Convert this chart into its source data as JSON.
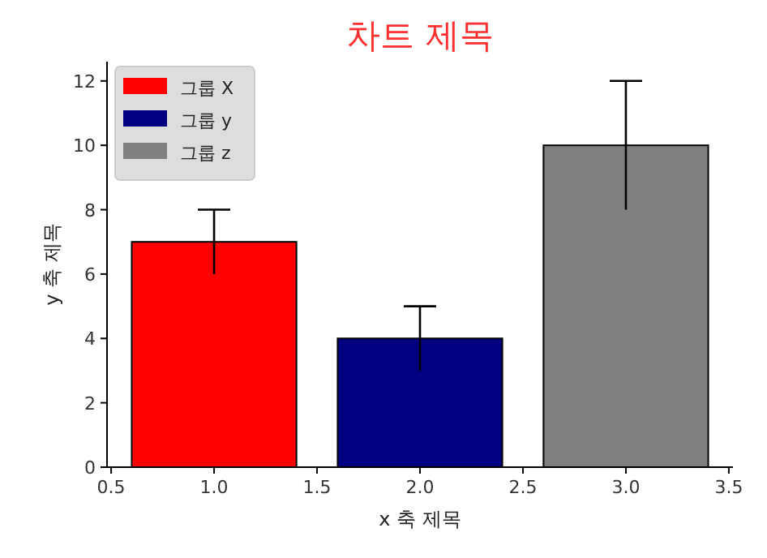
{
  "chart_data": {
    "type": "bar",
    "title": "차트 제목",
    "xlabel": "x 축 제목",
    "ylabel": "y 축 제목",
    "xlim": [
      0.48,
      3.52
    ],
    "xticks": [
      {
        "value": 0.5,
        "label": "0.5"
      },
      {
        "value": 1,
        "label": "1.0"
      },
      {
        "value": 1.5,
        "label": "1.5"
      },
      {
        "value": 2,
        "label": "2.0"
      },
      {
        "value": 2.5,
        "label": "2.5"
      },
      {
        "value": 3,
        "label": "3.0"
      },
      {
        "value": 3.5,
        "label": "3.5"
      }
    ],
    "ylim": [
      0,
      12.6
    ],
    "yticks": [
      0,
      2,
      4,
      6,
      8,
      10,
      12
    ],
    "legend": "top left",
    "series": [
      {
        "name": "그룹 X",
        "color": "#ff0000",
        "x": [
          1
        ],
        "values": [
          7
        ],
        "errors": [
          1
        ]
      },
      {
        "name": "그룹 y",
        "color": "#000080",
        "x": [
          2
        ],
        "values": [
          4
        ],
        "errors": [
          1
        ]
      },
      {
        "name": "그룹 z",
        "color": "#808080",
        "x": [
          3
        ],
        "values": [
          10
        ],
        "errors": [
          2
        ]
      }
    ]
  }
}
